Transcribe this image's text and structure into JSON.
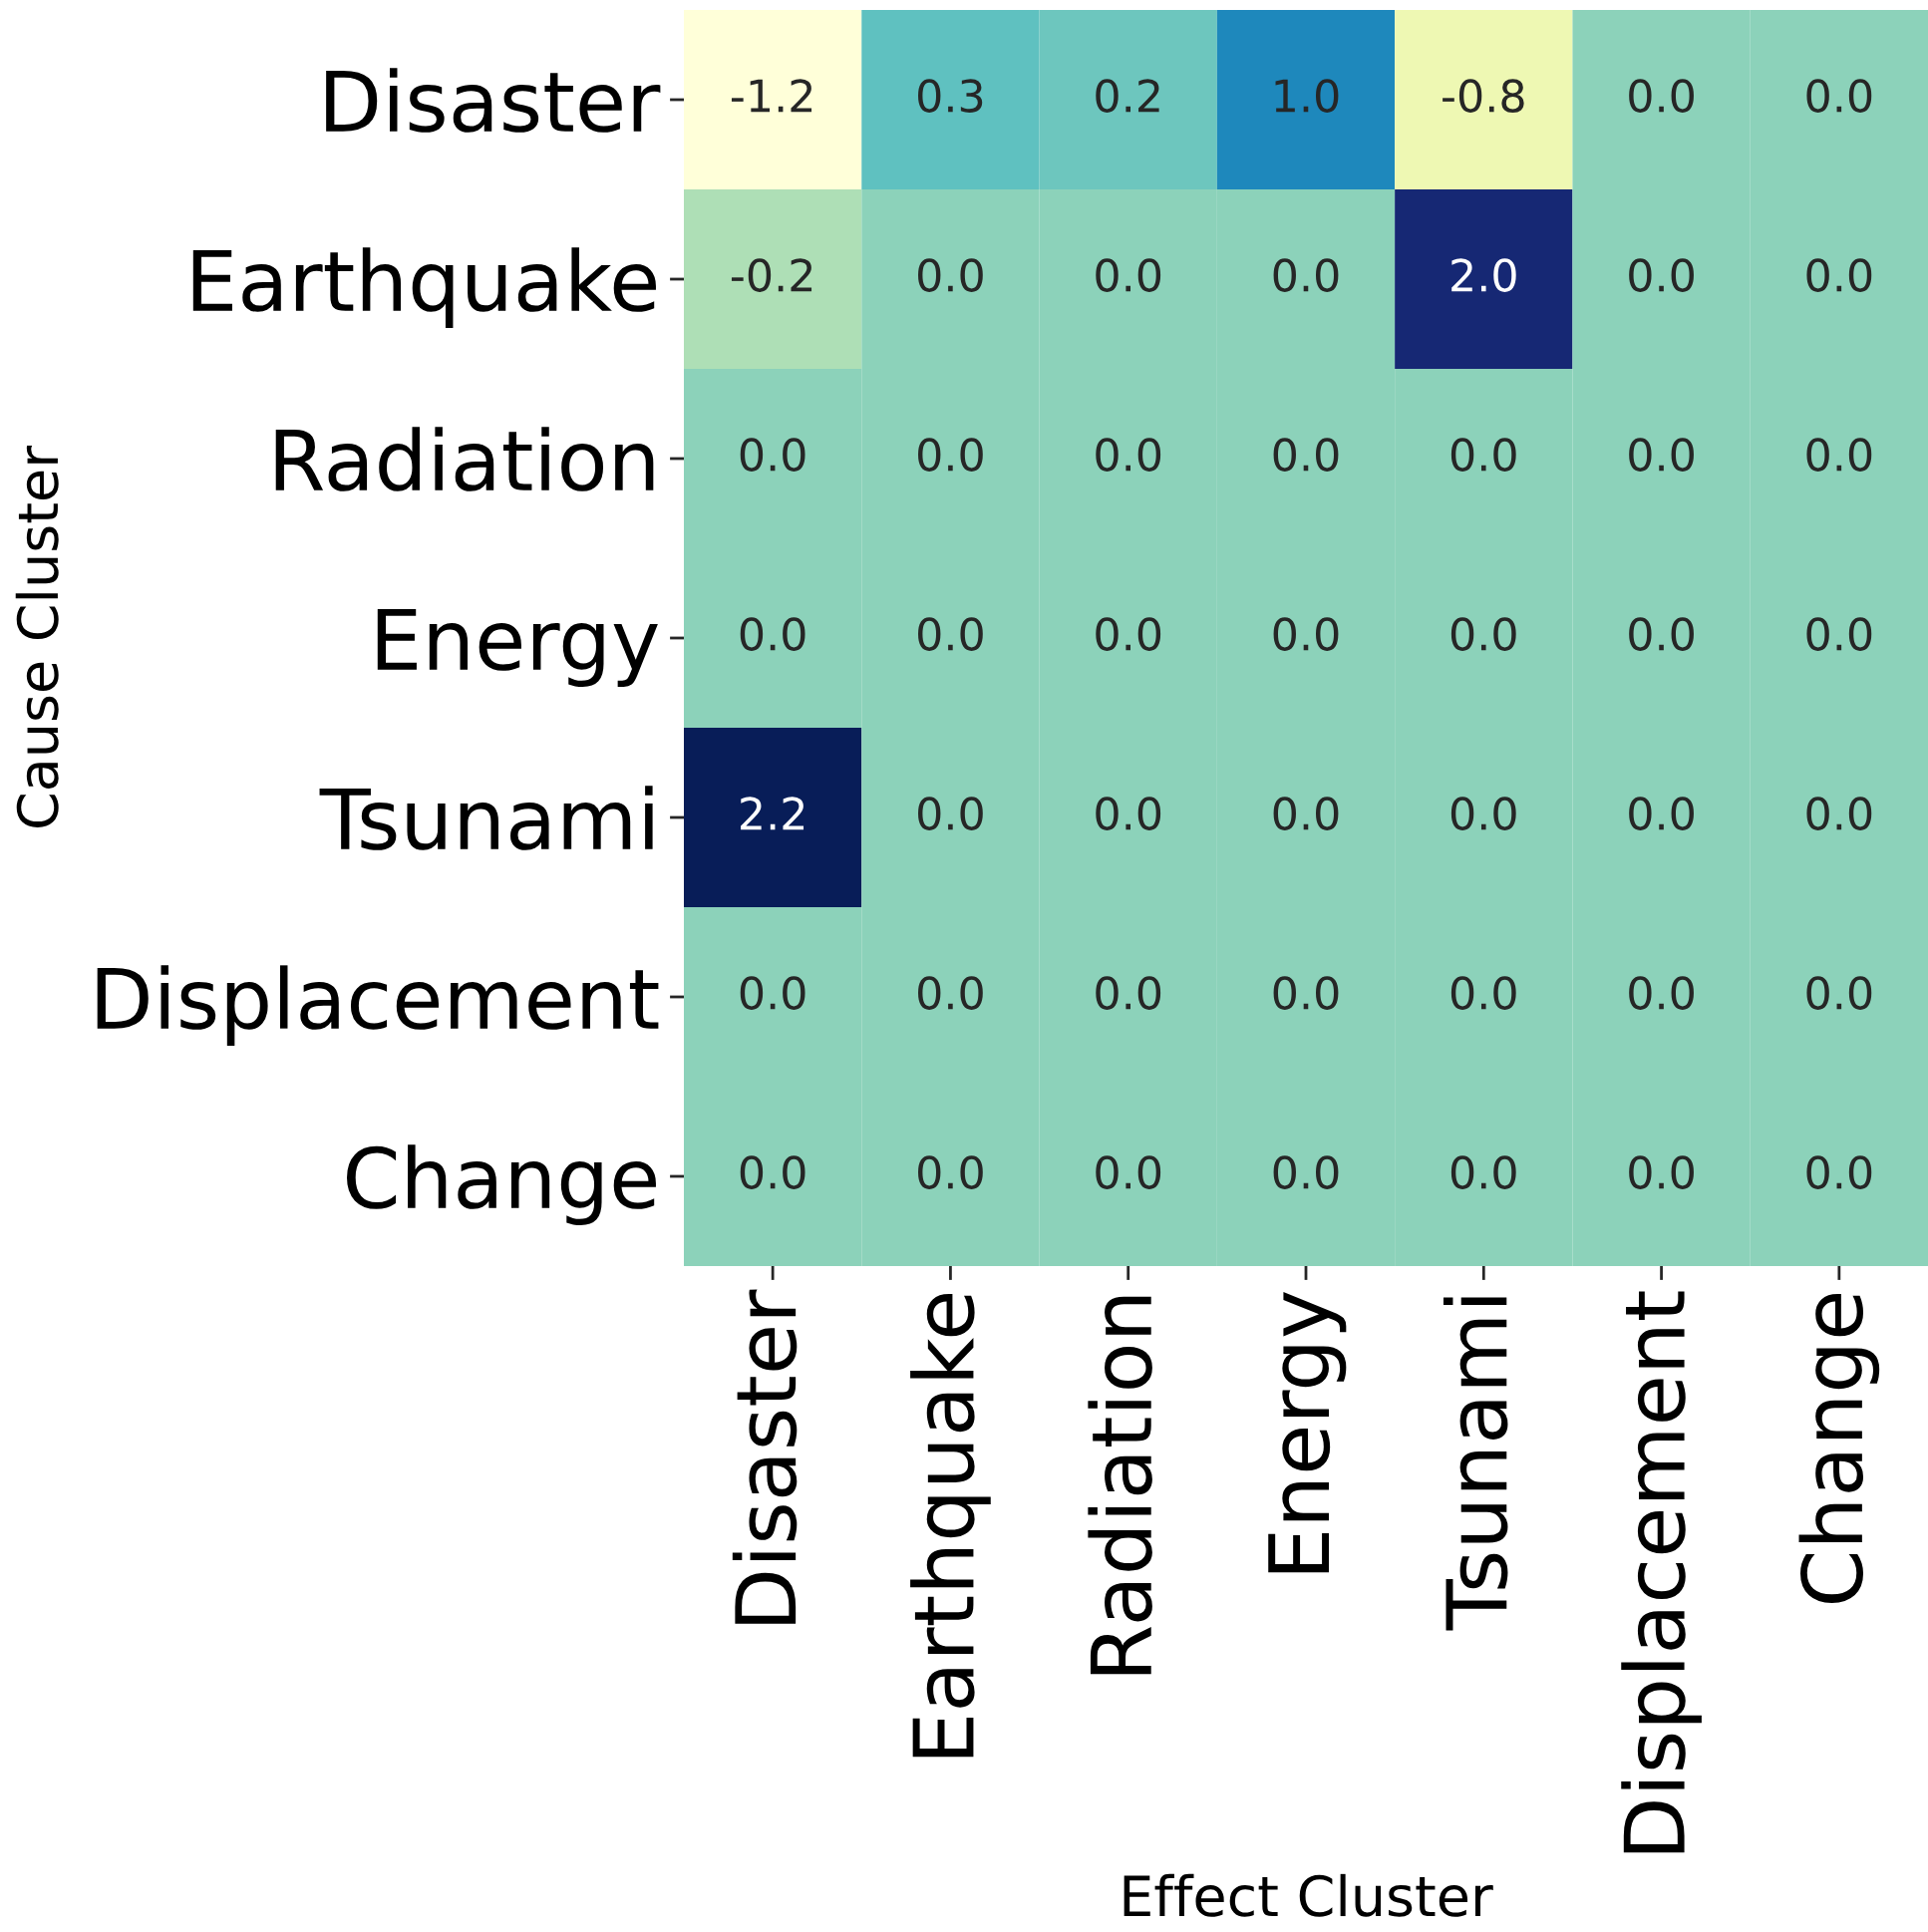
{
  "chart_data": {
    "type": "heatmap",
    "xlabel": "Effect Cluster",
    "ylabel": "Cause Cluster",
    "categories": [
      "Disaster",
      "Earthquake",
      "Radiation",
      "Energy",
      "Tsunami",
      "Displacement",
      "Change"
    ],
    "y_categories": [
      "Disaster",
      "Earthquake",
      "Radiation",
      "Energy",
      "Tsunami",
      "Displacement",
      "Change"
    ],
    "cells": [
      [
        -1.2,
        0.3,
        0.2,
        1.0,
        -0.8,
        0.0,
        0.0
      ],
      [
        -0.2,
        0.0,
        0.0,
        0.0,
        2.0,
        0.0,
        0.0
      ],
      [
        0.0,
        0.0,
        0.0,
        0.0,
        0.0,
        0.0,
        0.0
      ],
      [
        0.0,
        0.0,
        0.0,
        0.0,
        0.0,
        0.0,
        0.0
      ],
      [
        2.2,
        0.0,
        0.0,
        0.0,
        0.0,
        0.0,
        0.0
      ],
      [
        0.0,
        0.0,
        0.0,
        0.0,
        0.0,
        0.0,
        0.0
      ],
      [
        0.0,
        0.0,
        0.0,
        0.0,
        0.0,
        0.0,
        0.0
      ]
    ],
    "cell_labels": [
      [
        "-1.2",
        "0.3",
        "0.2",
        "1.0",
        "-0.8",
        "0.0",
        "0.0"
      ],
      [
        "-0.2",
        "0.0",
        "0.0",
        "0.0",
        "2.0",
        "0.0",
        "0.0"
      ],
      [
        "0.0",
        "0.0",
        "0.0",
        "0.0",
        "0.0",
        "0.0",
        "0.0"
      ],
      [
        "0.0",
        "0.0",
        "0.0",
        "0.0",
        "0.0",
        "0.0",
        "0.0"
      ],
      [
        "2.2",
        "0.0",
        "0.0",
        "0.0",
        "0.0",
        "0.0",
        "0.0"
      ],
      [
        "0.0",
        "0.0",
        "0.0",
        "0.0",
        "0.0",
        "0.0",
        "0.0"
      ],
      [
        "0.0",
        "0.0",
        "0.0",
        "0.0",
        "0.0",
        "0.0",
        "0.0"
      ]
    ]
  }
}
